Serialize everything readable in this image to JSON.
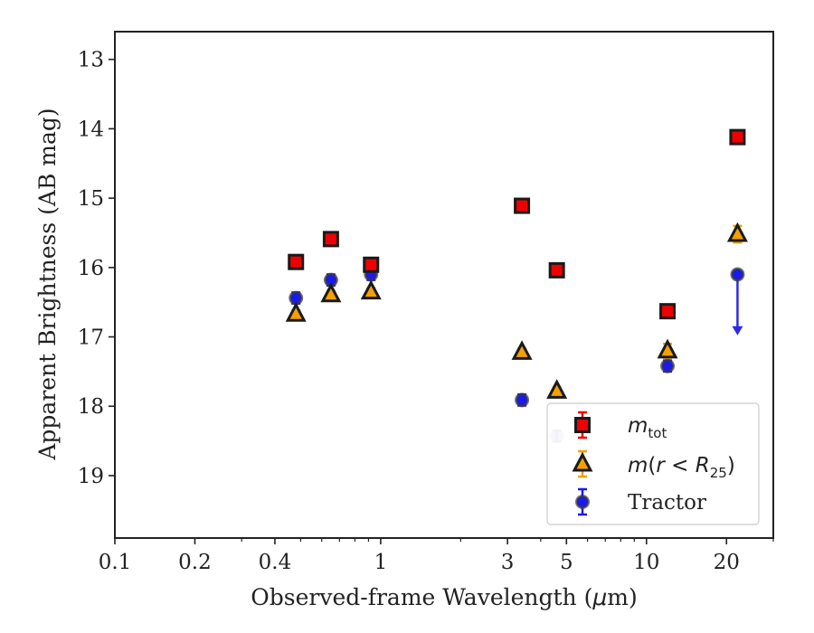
{
  "chart_data": {
    "type": "scatter",
    "xlabel_pre": "Observed-frame Wavelength (",
    "xlabel_unit_greek": "μ",
    "xlabel_unit_rest": "m)",
    "ylabel": "Apparent Brightness (AB mag)",
    "x_scale": "log",
    "xlim": [
      0.1,
      30
    ],
    "ylim": [
      19.9,
      12.6
    ],
    "y_inverted": true,
    "x_ticks": [
      0.1,
      0.2,
      0.4,
      1,
      3,
      5,
      10,
      20
    ],
    "x_tick_labels": [
      "0.1",
      "0.2",
      "0.4",
      "1",
      "3",
      "5",
      "10",
      "20"
    ],
    "y_ticks": [
      13,
      14,
      15,
      16,
      17,
      18,
      19
    ],
    "y_tick_labels": [
      "13",
      "14",
      "15",
      "16",
      "17",
      "18",
      "19"
    ],
    "grid": false,
    "legend_position": "bottom-right",
    "series": [
      {
        "key": "mtot",
        "legend": {
          "symbol": "m",
          "sub": "tot",
          "rest": ""
        },
        "marker": "square",
        "fill": "#ee0000",
        "errcolor": "#ee0000",
        "points": [
          {
            "x": 0.48,
            "y": 15.92,
            "err": 0.05
          },
          {
            "x": 0.65,
            "y": 15.59,
            "err": 0.05
          },
          {
            "x": 0.92,
            "y": 15.96,
            "err": 0.05
          },
          {
            "x": 3.4,
            "y": 15.11,
            "err": 0.05
          },
          {
            "x": 4.6,
            "y": 16.04,
            "err": 0.05
          },
          {
            "x": 12.0,
            "y": 16.63,
            "err": 0.05
          },
          {
            "x": 22.0,
            "y": 14.12,
            "err": 0.05
          }
        ]
      },
      {
        "key": "mr25",
        "legend": {
          "symbol": "m",
          "open": "(",
          "r": "r",
          "lt": " < ",
          "R": "R",
          "sub": "25",
          "close": ")"
        },
        "marker": "triangle",
        "fill": "#f5a000",
        "errcolor": "#f5a000",
        "points": [
          {
            "x": 0.48,
            "y": 16.67,
            "err": 0.05
          },
          {
            "x": 0.65,
            "y": 16.39,
            "err": 0.05
          },
          {
            "x": 0.92,
            "y": 16.35,
            "err": 0.05
          },
          {
            "x": 3.4,
            "y": 17.22,
            "err": 0.05
          },
          {
            "x": 4.6,
            "y": 17.78,
            "err": 0.05
          },
          {
            "x": 12.0,
            "y": 17.2,
            "err": 0.1
          },
          {
            "x": 22.0,
            "y": 15.52,
            "err": 0.12
          }
        ]
      },
      {
        "key": "tractor",
        "legend": {
          "text": "Tractor"
        },
        "marker": "circle",
        "fill": "#1a1aee",
        "errcolor": "#1a1aee",
        "points": [
          {
            "x": 0.48,
            "y": 16.44,
            "err": 0.08
          },
          {
            "x": 0.65,
            "y": 16.18,
            "err": 0.08
          },
          {
            "x": 0.92,
            "y": 16.1,
            "err": 0.08
          },
          {
            "x": 3.4,
            "y": 17.91,
            "err": 0.08
          },
          {
            "x": 4.6,
            "y": 18.43,
            "err": 0.08
          },
          {
            "x": 12.0,
            "y": 17.42,
            "err": 0.08
          },
          {
            "x": 22.0,
            "y": 16.1,
            "err": 0.0,
            "upper_limit_to": 16.95
          }
        ]
      }
    ]
  }
}
